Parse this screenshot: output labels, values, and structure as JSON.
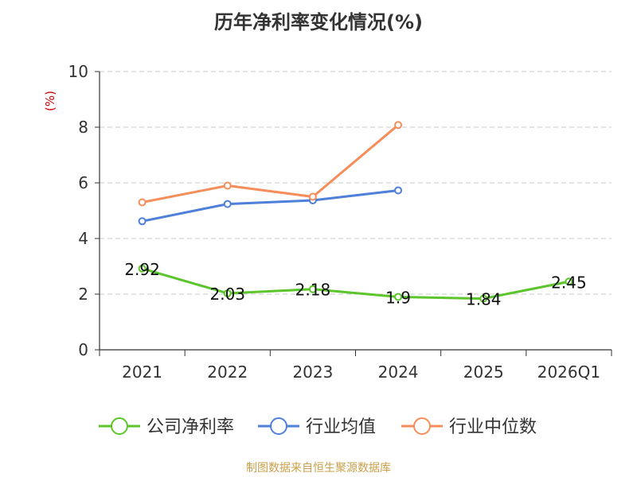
{
  "chart_data": {
    "type": "line",
    "title": "历年净利率变化情况(%)",
    "ylabel": "(%)",
    "categories": [
      "2021",
      "2022",
      "2023",
      "2024",
      "2025",
      "2026Q1"
    ],
    "ylim": [
      0,
      10
    ],
    "yticks": [
      0,
      2,
      4,
      6,
      8,
      10
    ],
    "grid": true,
    "legend_position": "bottom",
    "series": [
      {
        "name": "公司净利率",
        "color": "#5bc52b",
        "values": [
          2.92,
          2.03,
          2.18,
          1.9,
          1.84,
          2.45
        ],
        "labels": true
      },
      {
        "name": "行业均值",
        "color": "#4e7fd9",
        "values": [
          4.62,
          5.24,
          5.37,
          5.73,
          null,
          null
        ],
        "labels": false
      },
      {
        "name": "行业中位数",
        "color": "#f58e5a",
        "values": [
          5.3,
          5.9,
          5.5,
          8.08,
          null,
          null
        ],
        "labels": false
      }
    ]
  },
  "source": "制图数据来自恒生聚源数据库"
}
